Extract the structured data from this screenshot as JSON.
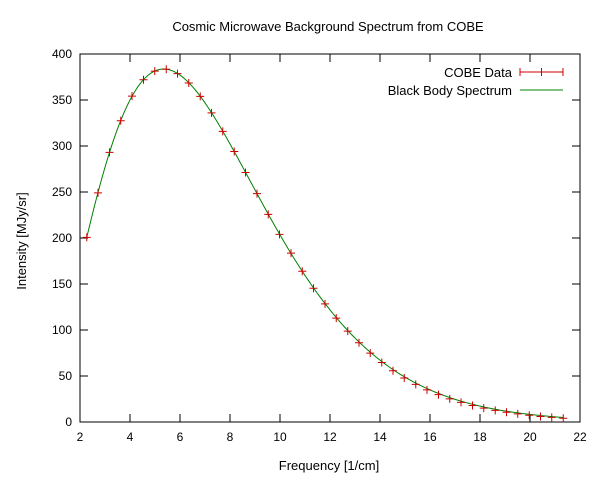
{
  "chart_data": {
    "type": "line",
    "title": "Cosmic Microwave Background Spectrum from COBE",
    "xlabel": "Frequency [1/cm]",
    "ylabel": "Intensity [MJy/sr]",
    "xlim": [
      2,
      22
    ],
    "ylim": [
      0,
      400
    ],
    "xticks": [
      2,
      4,
      6,
      8,
      10,
      12,
      14,
      16,
      18,
      20,
      22
    ],
    "yticks": [
      0,
      50,
      100,
      150,
      200,
      250,
      300,
      350,
      400
    ],
    "grid": false,
    "legend_position": "top-right",
    "series": [
      {
        "name": "COBE Data",
        "style": "points-with-errorbars",
        "color": "#cc0000",
        "x": [
          2.27,
          2.72,
          3.18,
          3.63,
          4.08,
          4.54,
          4.99,
          5.45,
          5.9,
          6.35,
          6.81,
          7.26,
          7.71,
          8.17,
          8.62,
          9.08,
          9.53,
          9.98,
          10.44,
          10.89,
          11.34,
          11.8,
          12.25,
          12.71,
          13.16,
          13.61,
          14.07,
          14.52,
          14.97,
          15.43,
          15.88,
          16.34,
          16.79,
          17.24,
          17.7,
          18.15,
          18.61,
          19.06,
          19.51,
          19.97,
          20.42,
          20.87,
          21.33
        ],
        "y": [
          200.7,
          249.1,
          293.1,
          327.5,
          354.2,
          372.0,
          381.4,
          383.4,
          378.7,
          368.5,
          353.9,
          336.0,
          315.9,
          294.0,
          271.2,
          248.2,
          225.7,
          204.0,
          183.5,
          163.8,
          145.4,
          128.4,
          112.9,
          98.8,
          86.2,
          74.9,
          64.7,
          55.7,
          47.8,
          40.9,
          34.9,
          29.7,
          25.2,
          21.3,
          17.9,
          15.1,
          12.6,
          10.6,
          8.8,
          7.3,
          6.0,
          5.0,
          4.1
        ]
      },
      {
        "name": "Black Body Spectrum",
        "style": "line",
        "color": "#008000",
        "model": "planck",
        "temperature_K": 2.725
      }
    ]
  }
}
